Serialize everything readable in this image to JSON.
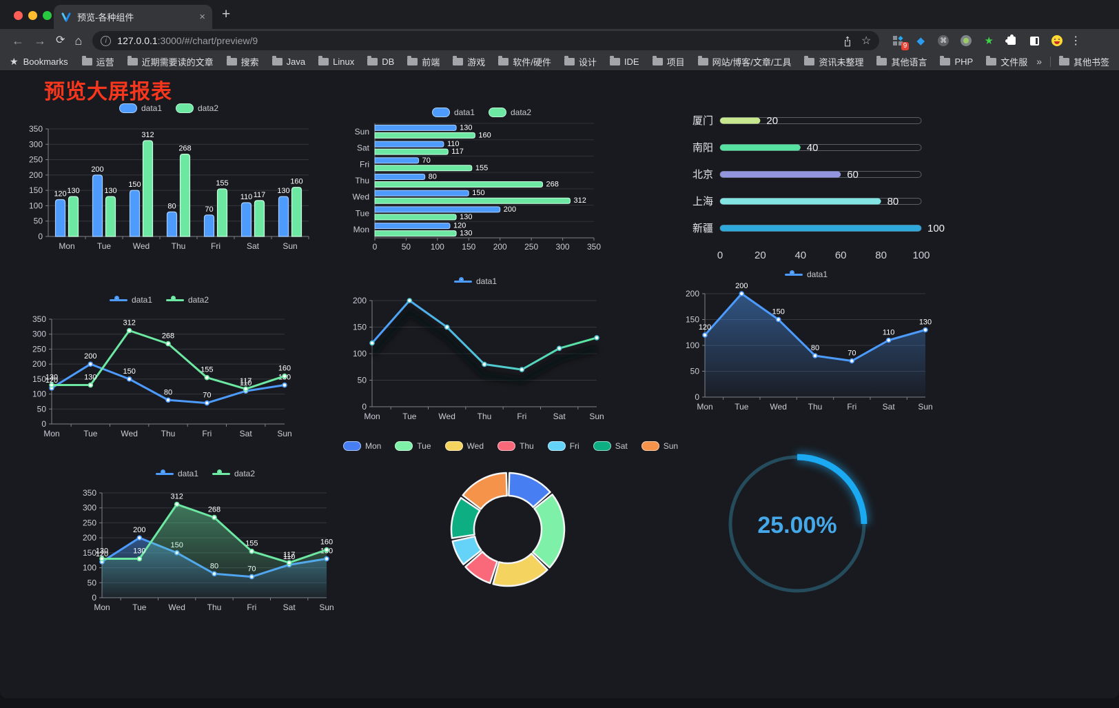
{
  "browser": {
    "tab_title": "预览-各种组件",
    "url_host": "127.0.0.1",
    "url_rest": ":3000/#/chart/preview/9",
    "bookmarks_label": "Bookmarks",
    "bookmarks": [
      "运营",
      "近期需要读的文章",
      "搜索",
      "Java",
      "Linux",
      "DB",
      "前端",
      "游戏",
      "软件/硬件",
      "设计",
      "IDE",
      "项目",
      "网站/博客/文章/工具",
      "资讯未整理",
      "其他语言",
      "PHP",
      "文件服务器"
    ],
    "bookmarks_overflow": "»",
    "other_bookmarks": "其他书签",
    "extension_badge": "9",
    "new_tab_label": "+",
    "tab_close_label": "×",
    "menu_dots": "⋮"
  },
  "page": {
    "title": "预览大屏报表",
    "title_color": "#f6361d",
    "background": "#191a1f"
  },
  "chart_data": [
    {
      "id": "bar-vertical",
      "type": "bar",
      "legend_position": "top",
      "categories": [
        "Mon",
        "Tue",
        "Wed",
        "Thu",
        "Fri",
        "Sat",
        "Sun"
      ],
      "series": [
        {
          "name": "data1",
          "color": "#4C9BFD",
          "border": "#A8CEFF",
          "values": [
            120,
            200,
            150,
            80,
            70,
            110,
            130
          ]
        },
        {
          "name": "data2",
          "color": "#6CE8A3",
          "border": "#C9FFE0",
          "values": [
            130,
            130,
            312,
            268,
            155,
            117,
            160
          ]
        }
      ],
      "ylim": [
        0,
        350
      ],
      "ystep": 50,
      "grid": true,
      "value_labels": true
    },
    {
      "id": "bar-horizontal",
      "type": "bar",
      "orientation": "horizontal",
      "legend_position": "top",
      "categories": [
        "Mon",
        "Tue",
        "Wed",
        "Thu",
        "Fri",
        "Sat",
        "Sun"
      ],
      "category_display_order_top_to_bottom": [
        "Sun",
        "Sat",
        "Fri",
        "Thu",
        "Wed",
        "Tue",
        "Mon"
      ],
      "series": [
        {
          "name": "data1",
          "color": "#4C9BFD",
          "border": "#A8CEFF",
          "values": [
            120,
            200,
            150,
            80,
            70,
            110,
            130
          ]
        },
        {
          "name": "data2",
          "color": "#6CE8A3",
          "border": "#C9FFE0",
          "values": [
            130,
            130,
            312,
            268,
            155,
            117,
            160
          ]
        }
      ],
      "xlim": [
        0,
        350
      ],
      "xstep": 50,
      "value_labels": true
    },
    {
      "id": "progress-bars",
      "type": "bar",
      "subtype": "progress",
      "items": [
        {
          "label": "厦门",
          "value": 20,
          "color": "#C7E88E"
        },
        {
          "label": "南阳",
          "value": 40,
          "color": "#57E2A2"
        },
        {
          "label": "北京",
          "value": 60,
          "color": "#9396DF"
        },
        {
          "label": "上海",
          "value": 80,
          "color": "#82E5E3"
        },
        {
          "label": "新疆",
          "value": 100,
          "color": "#2FA8DC"
        }
      ],
      "xlim": [
        0,
        100
      ],
      "xstep": 20
    },
    {
      "id": "line-basic",
      "type": "line",
      "legend_position": "top",
      "categories": [
        "Mon",
        "Tue",
        "Wed",
        "Thu",
        "Fri",
        "Sat",
        "Sun"
      ],
      "series": [
        {
          "name": "data1",
          "color": "#4C9BFD",
          "values": [
            120,
            200,
            150,
            80,
            70,
            110,
            130
          ],
          "labels": true
        },
        {
          "name": "data2",
          "color": "#6CE8A3",
          "values": [
            130,
            130,
            312,
            268,
            155,
            117,
            160
          ],
          "labels": true
        }
      ],
      "ylim": [
        0,
        350
      ],
      "ystep": 50
    },
    {
      "id": "line-gradient",
      "type": "line",
      "legend_position": "top",
      "categories": [
        "Mon",
        "Tue",
        "Wed",
        "Thu",
        "Fri",
        "Sat",
        "Sun"
      ],
      "series": [
        {
          "name": "data1",
          "color": "#4C9BFD",
          "gradient": [
            "#4C9BFD",
            "#50C7D7",
            "#5BE89B"
          ],
          "values": [
            120,
            200,
            150,
            80,
            70,
            110,
            130
          ],
          "labels": false,
          "shadow": true
        }
      ],
      "ylim": [
        0,
        200
      ],
      "ystep": 50
    },
    {
      "id": "line-area",
      "type": "line",
      "legend_position": "top",
      "categories": [
        "Mon",
        "Tue",
        "Wed",
        "Thu",
        "Fri",
        "Sat",
        "Sun"
      ],
      "series": [
        {
          "name": "data1",
          "color": "#4C9BFD",
          "values": [
            120,
            200,
            150,
            80,
            70,
            110,
            130
          ],
          "labels": true,
          "area": true
        }
      ],
      "ylim": [
        0,
        200
      ],
      "ystep": 50
    },
    {
      "id": "area-two",
      "type": "line",
      "legend_position": "top",
      "categories": [
        "Mon",
        "Tue",
        "Wed",
        "Thu",
        "Fri",
        "Sat",
        "Sun"
      ],
      "series": [
        {
          "name": "data1",
          "color": "#4C9BFD",
          "values": [
            120,
            200,
            150,
            80,
            70,
            110,
            130
          ],
          "labels": true,
          "area": true
        },
        {
          "name": "data2",
          "color": "#6CE8A3",
          "values": [
            130,
            130,
            312,
            268,
            155,
            117,
            160
          ],
          "labels": true,
          "area": true
        }
      ],
      "ylim": [
        0,
        350
      ],
      "ystep": 50
    },
    {
      "id": "donut",
      "type": "pie",
      "legend_position": "top",
      "start_angle_deg": -90,
      "direction": "clockwise",
      "inner_radius_ratio": 0.6,
      "items": [
        {
          "label": "Mon",
          "value": 120,
          "color": "#477FF2"
        },
        {
          "label": "Tue",
          "value": 200,
          "color": "#7EF0A7"
        },
        {
          "label": "Wed",
          "value": 150,
          "color": "#F5D35F"
        },
        {
          "label": "Thu",
          "value": 80,
          "color": "#F9697A"
        },
        {
          "label": "Fri",
          "value": 70,
          "color": "#65D3F7"
        },
        {
          "label": "Sat",
          "value": 110,
          "color": "#0EAE83"
        },
        {
          "label": "Sun",
          "value": 130,
          "color": "#F6934B"
        }
      ]
    },
    {
      "id": "gauge-ring",
      "type": "gauge",
      "value_percent": 25,
      "label": "25.00%",
      "progress_color": "#1BA9F1",
      "track_color": "#254C5C",
      "text_color": "#45A9E9"
    }
  ]
}
